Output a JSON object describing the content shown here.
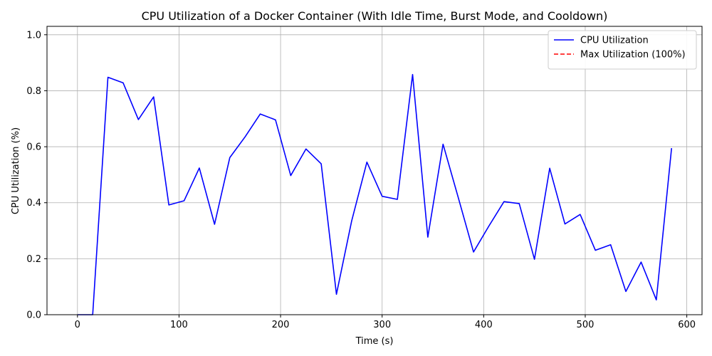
{
  "chart_data": {
    "type": "line",
    "title": "CPU Utilization of a Docker Container (With Idle Time, Burst Mode, and Cooldown)",
    "xlabel": "Time (s)",
    "ylabel": "CPU Utilization (%)",
    "xlim": [
      -30,
      615
    ],
    "ylim": [
      0,
      1.03
    ],
    "xticks": [
      0,
      100,
      200,
      300,
      400,
      500,
      600
    ],
    "yticks": [
      0.0,
      0.2,
      0.4,
      0.6,
      0.8,
      1.0
    ],
    "xtick_labels": [
      "0",
      "100",
      "200",
      "300",
      "400",
      "500",
      "600"
    ],
    "ytick_labels": [
      "0.0",
      "0.2",
      "0.4",
      "0.6",
      "0.8",
      "1.0"
    ],
    "grid": true,
    "legend_position": "top-right",
    "series": [
      {
        "name": "CPU Utilization",
        "color": "#0000ff",
        "style": "solid",
        "x": [
          0,
          15,
          30,
          45,
          60,
          75,
          90,
          105,
          120,
          135,
          150,
          165,
          180,
          195,
          210,
          225,
          240,
          255,
          270,
          285,
          300,
          315,
          330,
          345,
          360,
          375,
          390,
          405,
          420,
          435,
          450,
          465,
          480,
          495,
          510,
          525,
          540,
          555,
          570,
          585
        ],
        "y": [
          0.0,
          0.0,
          0.848,
          0.828,
          0.697,
          0.778,
          0.392,
          0.407,
          0.524,
          0.323,
          0.561,
          0.635,
          0.717,
          0.696,
          0.497,
          0.592,
          0.539,
          0.073,
          0.335,
          0.545,
          0.423,
          0.412,
          0.858,
          0.277,
          0.609,
          0.418,
          0.224,
          0.316,
          0.404,
          0.397,
          0.198,
          0.523,
          0.324,
          0.358,
          0.23,
          0.25,
          0.083,
          0.188,
          0.053,
          0.595
        ]
      },
      {
        "name": "Max Utilization (100%)",
        "color": "#ff0000",
        "style": "dashed",
        "x": [],
        "y": []
      }
    ]
  }
}
